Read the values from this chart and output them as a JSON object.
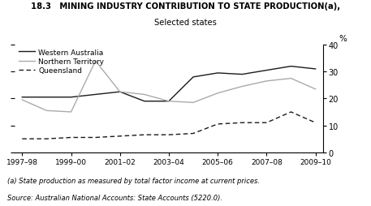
{
  "title_line1": "18.3   MINING INDUSTRY CONTRIBUTION TO STATE PRODUCTION(a),",
  "title_line2": "Selected states",
  "x_labels": [
    "1997–98",
    "1999–00",
    "2001–02",
    "2003–04",
    "2005–06",
    "2007–08",
    "2009–10"
  ],
  "x_values": [
    0,
    2,
    4,
    6,
    8,
    10,
    12
  ],
  "western_australia": [
    20.5,
    20.5,
    20.5,
    21.5,
    22.5,
    19.0,
    19.0,
    28.0,
    29.5,
    29.0,
    30.5,
    32.0,
    31.0
  ],
  "northern_territory": [
    19.5,
    15.5,
    15.0,
    34.0,
    22.5,
    21.5,
    19.0,
    18.5,
    22.0,
    24.5,
    26.5,
    27.5,
    23.5
  ],
  "queensland": [
    5.0,
    5.0,
    5.5,
    5.5,
    6.0,
    6.5,
    6.5,
    7.0,
    10.5,
    11.0,
    11.0,
    15.0,
    11.0
  ],
  "x_fine": [
    0,
    1,
    2,
    3,
    4,
    5,
    6,
    7,
    8,
    9,
    10,
    11,
    12
  ],
  "wa_color": "#1a1a1a",
  "nt_color": "#aaaaaa",
  "qld_color": "#1a1a1a",
  "ylim": [
    0,
    40
  ],
  "yticks": [
    0,
    10,
    20,
    30,
    40
  ],
  "ylabel": "%",
  "footnote1": "(a) State production as measured by total factor income at current prices.",
  "footnote2": "Source: Australian National Accounts: State Accounts (5220.0).",
  "legend_wa": "Western Australia",
  "legend_nt": "Northern Territory",
  "legend_qld": "Queensland"
}
